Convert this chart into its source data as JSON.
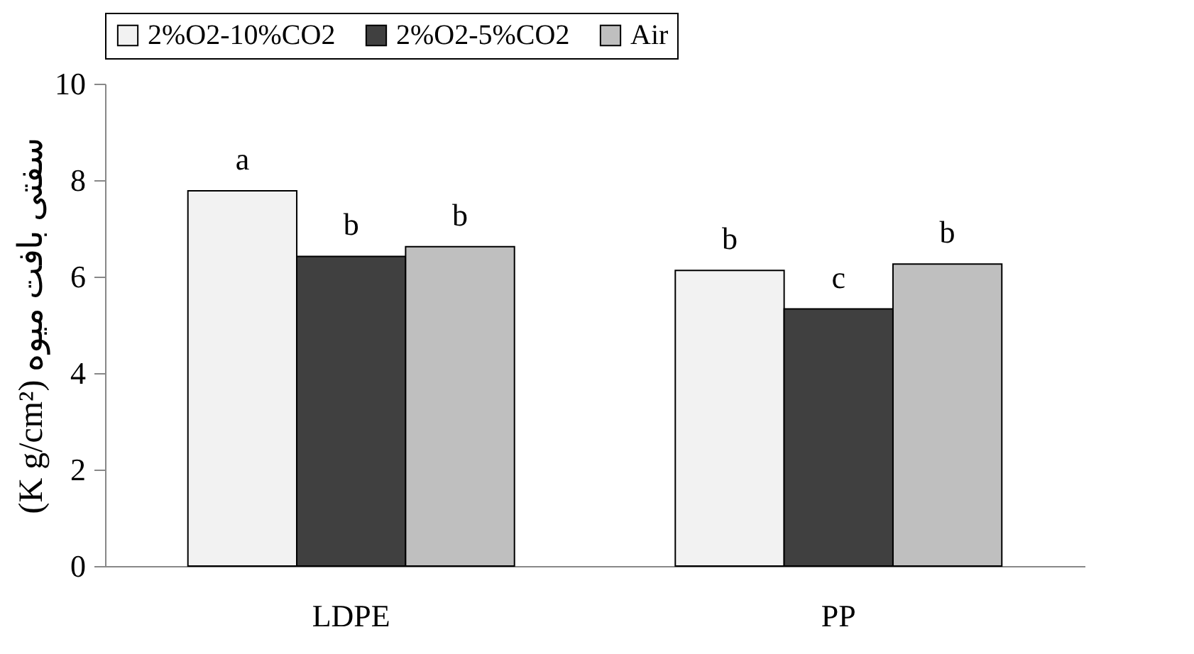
{
  "chart_data": {
    "type": "bar",
    "ylabel": "(K g/cm²) سفتی بافت میوه",
    "categories": [
      "LDPE",
      "PP"
    ],
    "series": [
      {
        "name": "2%O2-10%CO2",
        "color": "#f2f2f2",
        "values": [
          7.78,
          6.13
        ],
        "value_labels": [
          "a",
          "b"
        ]
      },
      {
        "name": "2%O2-5%CO2",
        "color": "#404040",
        "values": [
          6.42,
          5.33
        ],
        "value_labels": [
          "b",
          "c"
        ]
      },
      {
        "name": "Air",
        "color": "#bfbfbf",
        "values": [
          6.62,
          6.26
        ],
        "value_labels": [
          "b",
          "b"
        ]
      }
    ],
    "ylim": [
      0,
      10
    ],
    "yticks": [
      0,
      2,
      4,
      6,
      8,
      10
    ],
    "grid": false,
    "legend": "top"
  }
}
